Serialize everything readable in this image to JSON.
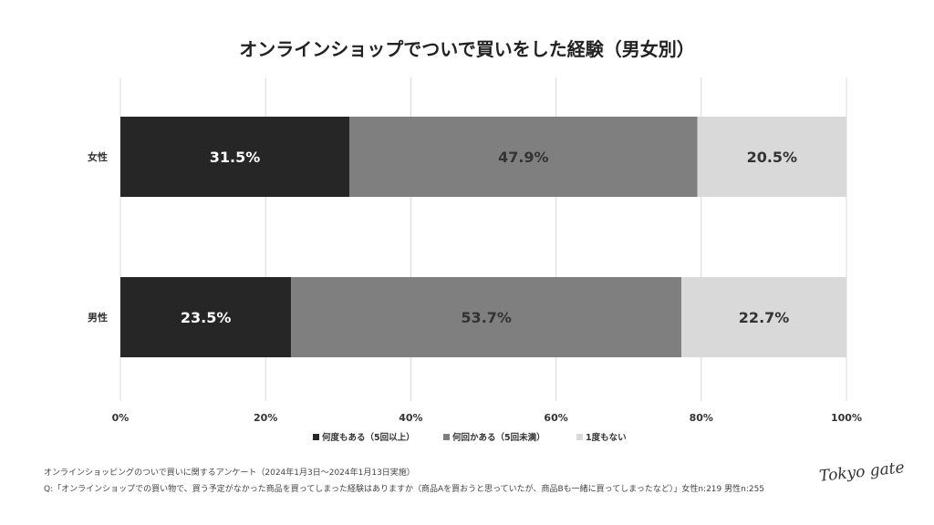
{
  "chart_data": {
    "type": "bar",
    "orientation": "horizontal-stacked-100",
    "title": "オンラインショップでついで買いをした経験（男女別）",
    "categories": [
      "女性",
      "男性"
    ],
    "series": [
      {
        "name": "何度もある（5回以上）",
        "values": [
          31.5,
          23.5
        ],
        "color": "#262626"
      },
      {
        "name": "何回かある（5回未満）",
        "values": [
          47.9,
          53.7
        ],
        "color": "#7f7f7f"
      },
      {
        "name": "1度もない",
        "values": [
          20.5,
          22.7
        ],
        "color": "#d9d9d9"
      }
    ],
    "data_labels": [
      [
        "31.5%",
        "23.5%"
      ],
      [
        "47.9%",
        "53.7%"
      ],
      [
        "20.5%",
        "22.7%"
      ]
    ],
    "xlim": [
      0,
      100
    ],
    "xticks": [
      "0%",
      "20%",
      "40%",
      "60%",
      "80%",
      "100%"
    ],
    "grid": true,
    "legend_position": "bottom"
  },
  "footer": {
    "line1": "オンラインショッピングのついで買いに関するアンケート（2024年1月3日〜2024年1月13日実施）",
    "line2": "Q:「オンラインショップでの買い物で、買う予定がなかった商品を買ってしまった経験はありますか（商品Aを買おうと思っていたが、商品Bも一緒に買ってしまったなど）」女性n:219 男性n:255"
  },
  "logo": "Tokyo gate"
}
